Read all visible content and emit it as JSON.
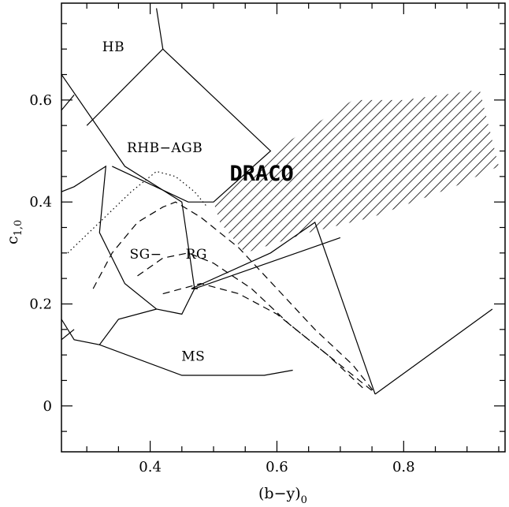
{
  "chart_data": {
    "type": "line",
    "x_axis": {
      "label": "(b−y)",
      "label_subscript": "0",
      "range": [
        0.26,
        0.96
      ],
      "ticks": [
        0.4,
        0.6,
        0.8
      ],
      "tick_labels": [
        "0.4",
        "0.6",
        "0.8"
      ],
      "minor_step": 0.05
    },
    "y_axis": {
      "label": "c",
      "label_subscript": "1,0",
      "range": [
        -0.09,
        0.79
      ],
      "ticks": [
        0,
        0.2,
        0.4,
        0.6
      ],
      "tick_labels": [
        "0",
        "0.2",
        "0.4",
        "0.6"
      ],
      "minor_step": 0.05
    },
    "grid": false,
    "region_labels": [
      {
        "text": "HB",
        "x": 0.342,
        "y": 0.696
      },
      {
        "text": "RHB−AGB",
        "x": 0.423,
        "y": 0.498
      },
      {
        "text": "SG−",
        "x": 0.393,
        "y": 0.289
      },
      {
        "text": "RG",
        "x": 0.473,
        "y": 0.289
      },
      {
        "text": "MS",
        "x": 0.468,
        "y": 0.089
      },
      {
        "text": "DRACO",
        "x": 0.576,
        "y": 0.442,
        "style": "bold"
      }
    ],
    "boundary_lines": [
      [
        [
          0.26,
          0.13
        ],
        [
          0.28,
          0.15
        ]
      ],
      [
        [
          0.26,
          0.58
        ],
        [
          0.28,
          0.61
        ]
      ],
      [
        [
          0.26,
          0.65
        ],
        [
          0.36,
          0.47
        ],
        [
          0.45,
          0.4
        ],
        [
          0.47,
          0.23
        ],
        [
          0.7,
          0.33
        ]
      ],
      [
        [
          0.26,
          0.42
        ],
        [
          0.28,
          0.43
        ],
        [
          0.33,
          0.47
        ],
        [
          0.32,
          0.34
        ],
        [
          0.36,
          0.24
        ],
        [
          0.41,
          0.19
        ],
        [
          0.45,
          0.18
        ],
        [
          0.47,
          0.23
        ]
      ],
      [
        [
          0.26,
          0.17
        ],
        [
          0.28,
          0.13
        ],
        [
          0.32,
          0.12
        ],
        [
          0.35,
          0.17
        ],
        [
          0.41,
          0.19
        ]
      ],
      [
        [
          0.32,
          0.12
        ],
        [
          0.45,
          0.06
        ],
        [
          0.58,
          0.06
        ],
        [
          0.625,
          0.07
        ]
      ],
      [
        [
          0.3,
          0.55
        ],
        [
          0.42,
          0.7
        ],
        [
          0.42,
          0.7
        ],
        [
          0.41,
          0.78
        ]
      ],
      [
        [
          0.34,
          0.47
        ],
        [
          0.46,
          0.4
        ],
        [
          0.5,
          0.4
        ],
        [
          0.59,
          0.5
        ],
        [
          0.42,
          0.7
        ]
      ],
      [
        [
          0.475,
          0.23
        ],
        [
          0.465,
          0.23
        ],
        [
          0.59,
          0.3
        ],
        [
          0.66,
          0.36
        ],
        [
          0.755,
          0.023
        ]
      ],
      [
        [
          0.755,
          0.023
        ],
        [
          0.94,
          0.19
        ]
      ]
    ],
    "dotted_curve": [
      [
        0.27,
        0.3
      ],
      [
        0.32,
        0.36
      ],
      [
        0.37,
        0.42
      ],
      [
        0.41,
        0.46
      ],
      [
        0.44,
        0.45
      ],
      [
        0.47,
        0.42
      ],
      [
        0.49,
        0.39
      ]
    ],
    "dashed_curves": [
      [
        [
          0.31,
          0.23
        ],
        [
          0.34,
          0.3
        ],
        [
          0.38,
          0.36
        ],
        [
          0.42,
          0.39
        ],
        [
          0.44,
          0.4
        ],
        [
          0.48,
          0.37
        ],
        [
          0.54,
          0.31
        ],
        [
          0.6,
          0.23
        ],
        [
          0.66,
          0.15
        ],
        [
          0.72,
          0.08
        ],
        [
          0.755,
          0.025
        ]
      ],
      [
        [
          0.38,
          0.255
        ],
        [
          0.42,
          0.29
        ],
        [
          0.46,
          0.3
        ],
        [
          0.5,
          0.28
        ],
        [
          0.56,
          0.23
        ],
        [
          0.62,
          0.16
        ],
        [
          0.68,
          0.1
        ],
        [
          0.74,
          0.03
        ]
      ],
      [
        [
          0.42,
          0.22
        ],
        [
          0.48,
          0.24
        ],
        [
          0.54,
          0.22
        ],
        [
          0.6,
          0.18
        ],
        [
          0.66,
          0.12
        ],
        [
          0.72,
          0.06
        ],
        [
          0.755,
          0.025
        ]
      ]
    ],
    "hatched_region": [
      [
        0.5,
        0.4
      ],
      [
        0.62,
        0.52
      ],
      [
        0.72,
        0.6
      ],
      [
        0.8,
        0.6
      ],
      [
        0.92,
        0.62
      ],
      [
        0.95,
        0.47
      ],
      [
        0.88,
        0.43
      ],
      [
        0.75,
        0.37
      ],
      [
        0.65,
        0.34
      ],
      [
        0.55,
        0.3
      ],
      [
        0.51,
        0.36
      ]
    ]
  }
}
